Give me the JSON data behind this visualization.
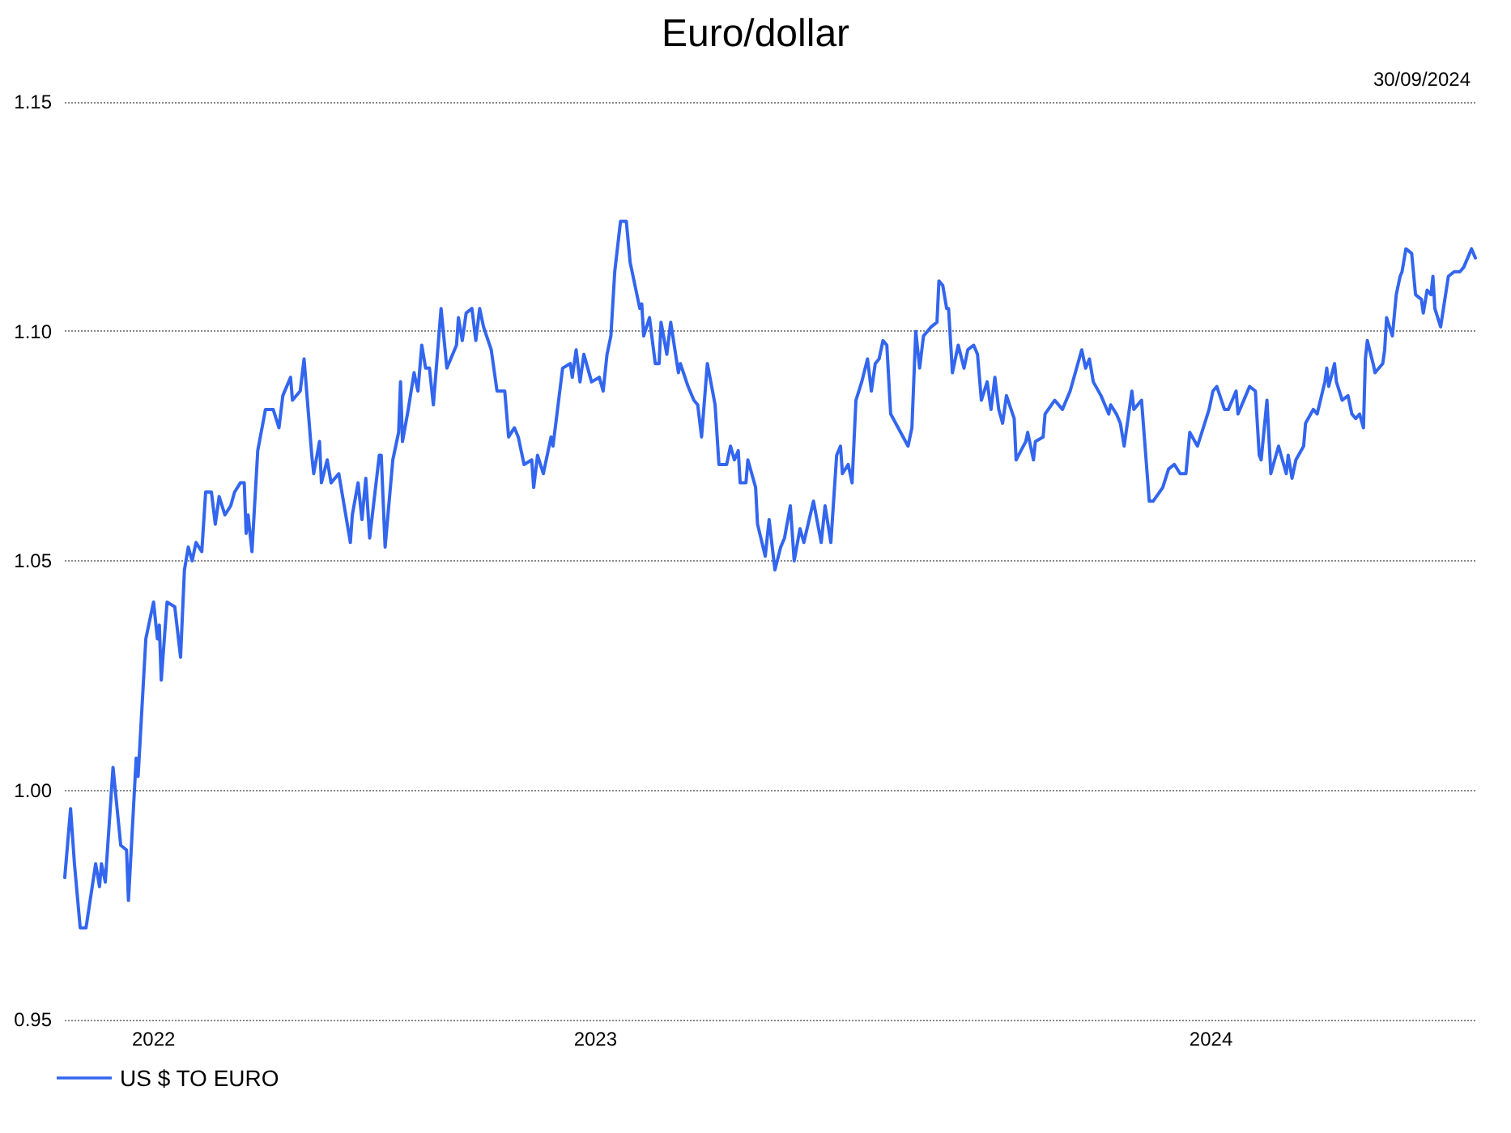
{
  "chart_data": {
    "type": "line",
    "title": "Euro/dollar",
    "subtitle": "30/09/2024",
    "xlim": [
      "2022-09-30",
      "2024-09-30"
    ],
    "xticks": [
      {
        "value": "2022-11-15",
        "label": "2022"
      },
      {
        "value": "2023-07-02",
        "label": "2023"
      },
      {
        "value": "2024-05-16",
        "label": "2024"
      }
    ],
    "ylim": [
      0.95,
      1.15
    ],
    "yticks": [
      0.95,
      {
        "value": 1.0,
        "label": "1.00"
      },
      1.05,
      {
        "value": 1.1,
        "label": "1.10"
      },
      1.15
    ],
    "grid": "y",
    "legend": "bottom left",
    "marker": "none",
    "line_style": "solid",
    "series": [
      {
        "name": "US $ TO EURO",
        "color": "#3366ee",
        "x": [
          "2022-09-30",
          "2022-10-03",
          "2022-10-05",
          "2022-10-08",
          "2022-10-11",
          "2022-10-16",
          "2022-10-18",
          "2022-10-19",
          "2022-10-21",
          "2022-10-25",
          "2022-10-29",
          "2022-11-01",
          "2022-11-02",
          "2022-11-06",
          "2022-11-07",
          "2022-11-11",
          "2022-11-15",
          "2022-11-17",
          "2022-11-18",
          "2022-11-19",
          "2022-11-22",
          "2022-11-26",
          "2022-11-29",
          "2022-12-01",
          "2022-12-03",
          "2022-12-05",
          "2022-12-07",
          "2022-12-10",
          "2022-12-12",
          "2022-12-15",
          "2022-12-17",
          "2022-12-19",
          "2022-12-22",
          "2022-12-25",
          "2022-12-27",
          "2022-12-30",
          "2023-01-01",
          "2023-01-02",
          "2023-01-03",
          "2023-01-05",
          "2023-01-08",
          "2023-01-12",
          "2023-01-16",
          "2023-01-19",
          "2023-01-21",
          "2023-01-25",
          "2023-01-26",
          "2023-01-30",
          "2023-02-01",
          "2023-02-05",
          "2023-02-06",
          "2023-02-09",
          "2023-02-10",
          "2023-02-13",
          "2023-02-15",
          "2023-02-19",
          "2023-02-25",
          "2023-02-26",
          "2023-03-01",
          "2023-03-03",
          "2023-03-05",
          "2023-03-07",
          "2023-03-12",
          "2023-03-13",
          "2023-03-15",
          "2023-03-19",
          "2023-03-22",
          "2023-03-23",
          "2023-03-24",
          "2023-03-27",
          "2023-03-30",
          "2023-04-01",
          "2023-04-03",
          "2023-04-05",
          "2023-04-07",
          "2023-04-09",
          "2023-04-13",
          "2023-04-16",
          "2023-04-21",
          "2023-04-22",
          "2023-04-24",
          "2023-04-26",
          "2023-04-29",
          "2023-05-01",
          "2023-05-03",
          "2023-05-05",
          "2023-05-09",
          "2023-05-12",
          "2023-05-16",
          "2023-05-18",
          "2023-05-21",
          "2023-05-23",
          "2023-05-26",
          "2023-05-30",
          "2023-05-31",
          "2023-06-02",
          "2023-06-05",
          "2023-06-09",
          "2023-06-10",
          "2023-06-15",
          "2023-06-19",
          "2023-06-20",
          "2023-06-22",
          "2023-06-24",
          "2023-06-26",
          "2023-06-30",
          "2023-07-04",
          "2023-07-06",
          "2023-07-08",
          "2023-07-10",
          "2023-07-12",
          "2023-07-15",
          "2023-07-18",
          "2023-07-20",
          "2023-07-25",
          "2023-07-26",
          "2023-07-27",
          "2023-07-30",
          "2023-08-02",
          "2023-08-04",
          "2023-08-05",
          "2023-08-08",
          "2023-08-10",
          "2023-08-14",
          "2023-08-15",
          "2023-08-19",
          "2023-08-22",
          "2023-08-24",
          "2023-08-26",
          "2023-08-29",
          "2023-09-02",
          "2023-09-04",
          "2023-09-08",
          "2023-09-10",
          "2023-09-12",
          "2023-09-14",
          "2023-09-15",
          "2023-09-18",
          "2023-09-19",
          "2023-09-23",
          "2023-09-24",
          "2023-09-28",
          "2023-09-30",
          "2023-10-03",
          "2023-10-06",
          "2023-10-08",
          "2023-10-11",
          "2023-10-13",
          "2023-10-16",
          "2023-10-18",
          "2023-10-23",
          "2023-10-27",
          "2023-10-29",
          "2023-11-01",
          "2023-11-04",
          "2023-11-06",
          "2023-11-07",
          "2023-11-10",
          "2023-11-12",
          "2023-11-14",
          "2023-11-17",
          "2023-11-20",
          "2023-11-22",
          "2023-11-24",
          "2023-11-26",
          "2023-11-28",
          "2023-11-30",
          "2023-12-02",
          "2023-12-11",
          "2023-12-13",
          "2023-12-15",
          "2023-12-17",
          "2023-12-19",
          "2023-12-23",
          "2023-12-26",
          "2023-12-27",
          "2023-12-29",
          "2023-12-31",
          "2024-01-01",
          "2024-01-03",
          "2024-01-06",
          "2024-01-09",
          "2024-01-11",
          "2024-01-14",
          "2024-01-16",
          "2024-01-18",
          "2024-01-21",
          "2024-01-23",
          "2024-01-25",
          "2024-01-27",
          "2024-01-29",
          "2024-01-31",
          "2024-02-04",
          "2024-02-05",
          "2024-02-10",
          "2024-02-11",
          "2024-02-14",
          "2024-02-15",
          "2024-02-19",
          "2024-02-20",
          "2024-02-25",
          "2024-02-29",
          "2024-03-04",
          "2024-03-06",
          "2024-03-10",
          "2024-03-12",
          "2024-03-14",
          "2024-03-16",
          "2024-03-20",
          "2024-03-24",
          "2024-03-25",
          "2024-03-28",
          "2024-03-30",
          "2024-04-01",
          "2024-04-05",
          "2024-04-06",
          "2024-04-10",
          "2024-04-14",
          "2024-04-16",
          "2024-04-21",
          "2024-04-24",
          "2024-04-27",
          "2024-04-30",
          "2024-05-03",
          "2024-05-05",
          "2024-05-09",
          "2024-05-15",
          "2024-05-17",
          "2024-05-19",
          "2024-05-23",
          "2024-05-25",
          "2024-05-29",
          "2024-05-30",
          "2024-06-03",
          "2024-06-05",
          "2024-06-08",
          "2024-06-10",
          "2024-06-11",
          "2024-06-14",
          "2024-06-16",
          "2024-06-20",
          "2024-06-24",
          "2024-06-25",
          "2024-06-27",
          "2024-06-29",
          "2024-07-03",
          "2024-07-04",
          "2024-07-08",
          "2024-07-10",
          "2024-07-14",
          "2024-07-15",
          "2024-07-16",
          "2024-07-19",
          "2024-07-20",
          "2024-07-23",
          "2024-07-26",
          "2024-07-28",
          "2024-07-30",
          "2024-08-01",
          "2024-08-03",
          "2024-08-04",
          "2024-08-05",
          "2024-08-08",
          "2024-08-09",
          "2024-08-13",
          "2024-08-14",
          "2024-08-15",
          "2024-08-18",
          "2024-08-20",
          "2024-08-22",
          "2024-08-23",
          "2024-08-25",
          "2024-08-28",
          "2024-08-30",
          "2024-09-02",
          "2024-09-03",
          "2024-09-05",
          "2024-09-07",
          "2024-09-08",
          "2024-09-09",
          "2024-09-12",
          "2024-09-16",
          "2024-09-19",
          "2024-09-22",
          "2024-09-24",
          "2024-09-27",
          "2024-09-28",
          "2024-09-30"
        ],
        "values": [
          0.981,
          0.996,
          0.984,
          0.97,
          0.97,
          0.984,
          0.979,
          0.984,
          0.98,
          1.005,
          0.988,
          0.987,
          0.976,
          1.007,
          1.003,
          1.033,
          1.041,
          1.033,
          1.036,
          1.024,
          1.041,
          1.04,
          1.029,
          1.048,
          1.053,
          1.05,
          1.054,
          1.052,
          1.065,
          1.065,
          1.058,
          1.064,
          1.06,
          1.062,
          1.065,
          1.067,
          1.067,
          1.056,
          1.06,
          1.052,
          1.074,
          1.083,
          1.083,
          1.079,
          1.086,
          1.09,
          1.085,
          1.087,
          1.094,
          1.073,
          1.069,
          1.076,
          1.067,
          1.072,
          1.067,
          1.069,
          1.054,
          1.06,
          1.067,
          1.059,
          1.068,
          1.055,
          1.073,
          1.073,
          1.053,
          1.072,
          1.078,
          1.089,
          1.076,
          1.083,
          1.091,
          1.087,
          1.097,
          1.092,
          1.092,
          1.084,
          1.105,
          1.092,
          1.097,
          1.103,
          1.098,
          1.104,
          1.105,
          1.098,
          1.105,
          1.101,
          1.096,
          1.087,
          1.087,
          1.077,
          1.079,
          1.077,
          1.071,
          1.072,
          1.066,
          1.073,
          1.069,
          1.077,
          1.075,
          1.092,
          1.093,
          1.09,
          1.096,
          1.089,
          1.095,
          1.089,
          1.09,
          1.087,
          1.095,
          1.099,
          1.113,
          1.124,
          1.124,
          1.115,
          1.105,
          1.106,
          1.099,
          1.103,
          1.093,
          1.093,
          1.102,
          1.095,
          1.102,
          1.091,
          1.093,
          1.088,
          1.085,
          1.084,
          1.077,
          1.093,
          1.084,
          1.071,
          1.071,
          1.075,
          1.072,
          1.074,
          1.067,
          1.067,
          1.072,
          1.066,
          1.058,
          1.051,
          1.059,
          1.048,
          1.053,
          1.055,
          1.062,
          1.05,
          1.057,
          1.054,
          1.063,
          1.054,
          1.062,
          1.054,
          1.073,
          1.075,
          1.069,
          1.071,
          1.067,
          1.085,
          1.089,
          1.094,
          1.087,
          1.093,
          1.094,
          1.098,
          1.097,
          1.082,
          1.075,
          1.079,
          1.1,
          1.092,
          1.099,
          1.101,
          1.102,
          1.111,
          1.11,
          1.105,
          1.105,
          1.091,
          1.097,
          1.092,
          1.096,
          1.097,
          1.095,
          1.085,
          1.089,
          1.083,
          1.09,
          1.083,
          1.08,
          1.086,
          1.081,
          1.072,
          1.076,
          1.078,
          1.072,
          1.076,
          1.077,
          1.082,
          1.085,
          1.083,
          1.087,
          1.09,
          1.096,
          1.092,
          1.094,
          1.089,
          1.086,
          1.082,
          1.084,
          1.082,
          1.08,
          1.075,
          1.087,
          1.083,
          1.085,
          1.063,
          1.063,
          1.066,
          1.07,
          1.071,
          1.069,
          1.069,
          1.078,
          1.075,
          1.083,
          1.087,
          1.088,
          1.083,
          1.083,
          1.087,
          1.082,
          1.086,
          1.088,
          1.087,
          1.073,
          1.072,
          1.085,
          1.069,
          1.075,
          1.069,
          1.073,
          1.068,
          1.072,
          1.075,
          1.08,
          1.083,
          1.082,
          1.089,
          1.092,
          1.088,
          1.093,
          1.089,
          1.085,
          1.086,
          1.082,
          1.081,
          1.082,
          1.079,
          1.094,
          1.098,
          1.093,
          1.091,
          1.093,
          1.096,
          1.103,
          1.099,
          1.108,
          1.112,
          1.113,
          1.118,
          1.117,
          1.108,
          1.107,
          1.104,
          1.109,
          1.108,
          1.112,
          1.105,
          1.101,
          1.112,
          1.113,
          1.113,
          1.114,
          1.117,
          1.118,
          1.116
        ]
      }
    ]
  }
}
